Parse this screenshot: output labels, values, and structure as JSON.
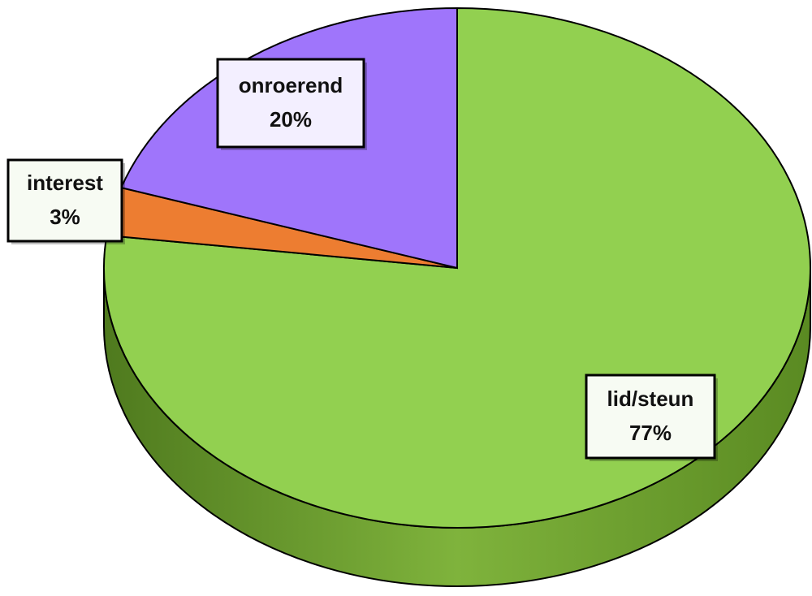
{
  "chart_data": {
    "type": "pie",
    "categories": [
      "lid/steun",
      "interest",
      "onroerend"
    ],
    "values": [
      77,
      3,
      20
    ],
    "value_labels": [
      "77%",
      "3%",
      "20%"
    ],
    "colors": [
      "#92d050",
      "#ed7d31",
      "#9f75fb"
    ]
  }
}
